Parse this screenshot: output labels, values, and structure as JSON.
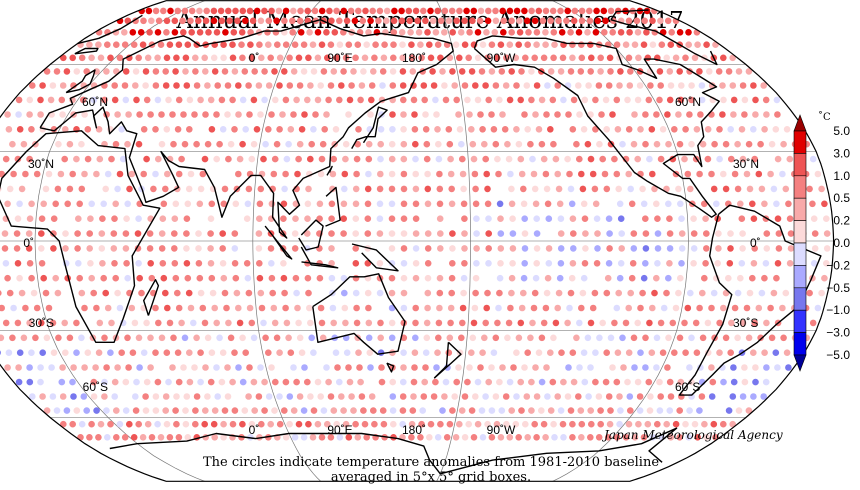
{
  "title": "Annual Mean Temperature Anomalies 2017",
  "credit": "Japan Meteorological Agency",
  "caption": {
    "line1": "The circles indicate temperature anomalies from 1981-2010 baseline",
    "line2": "averaged in 5°x 5° grid boxes."
  },
  "map": {
    "projection": "Robinson, centered 150°E",
    "lon_labels": [
      "0˚",
      "90˚E",
      "180˚",
      "90˚W"
    ],
    "lat_labels_left": [
      "60˚N",
      "30˚N",
      "0˚",
      "30˚S",
      "60˚S"
    ],
    "lat_labels_right": [
      "60˚N",
      "30˚N",
      "0˚",
      "30˚S",
      "60˚S"
    ]
  },
  "legend": {
    "unit": "˚C",
    "ticks": [
      "5.0",
      "3.0",
      "1.0",
      "0.5",
      "0.2",
      "0.0",
      "−0.2",
      "−0.5",
      "−1.0",
      "−3.0",
      "−5.0"
    ],
    "colors": [
      "#e00000",
      "#ee5555",
      "#f48080",
      "#f8aaaa",
      "#fcdada",
      "#dcdcff",
      "#aaaaff",
      "#7777ee",
      "#3333ff",
      "#0000ee"
    ],
    "arrow_top_color": "#990000",
    "arrow_bottom_color": "#000099"
  }
}
